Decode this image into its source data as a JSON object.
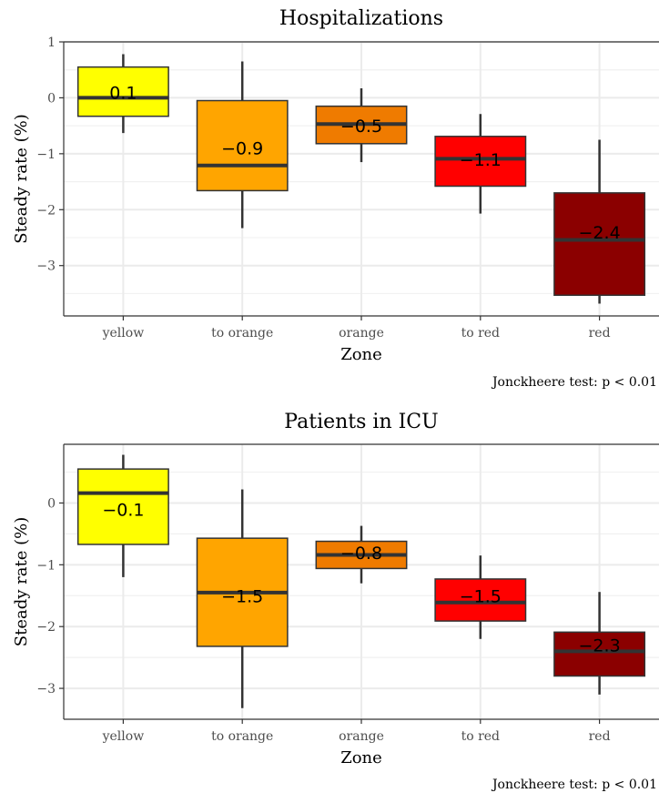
{
  "chart_data": [
    {
      "type": "box",
      "title": "Hospitalizations",
      "xlabel": "Zone",
      "ylabel": "Steady rate (%)",
      "caption": "Jonckheere test: p < 0.01",
      "ylim": [
        -3.9,
        1.0
      ],
      "yticks": [
        {
          "value": 1,
          "label": "1"
        },
        {
          "value": 0,
          "label": "0"
        },
        {
          "value": -1,
          "label": "−1"
        },
        {
          "value": -2,
          "label": "−2"
        },
        {
          "value": -3,
          "label": "−3"
        }
      ],
      "categories": [
        "yellow",
        "to orange",
        "orange",
        "to red",
        "red"
      ],
      "colors": [
        "#ffff00",
        "#ffa500",
        "#ef7b00",
        "#ff0000",
        "#8b0000"
      ],
      "boxes": [
        {
          "whisker_low": -0.63,
          "q1": -0.33,
          "median": 0.0,
          "q3": 0.55,
          "whisker_high": 0.78,
          "mean_label": "0.1"
        },
        {
          "whisker_low": -2.33,
          "q1": -1.66,
          "median": -1.21,
          "q3": -0.05,
          "whisker_high": 0.65,
          "mean_label": "−0.9"
        },
        {
          "whisker_low": -1.15,
          "q1": -0.82,
          "median": -0.47,
          "q3": -0.15,
          "whisker_high": 0.17,
          "mean_label": "−0.5"
        },
        {
          "whisker_low": -2.07,
          "q1": -1.58,
          "median": -1.09,
          "q3": -0.69,
          "whisker_high": -0.29,
          "mean_label": "−1.1"
        },
        {
          "whisker_low": -3.68,
          "q1": -3.53,
          "median": -2.54,
          "q3": -1.7,
          "whisker_high": -0.75,
          "mean_label": "−2.4"
        }
      ],
      "grid": true
    },
    {
      "type": "box",
      "title": "Patients in ICU",
      "xlabel": "Zone",
      "ylabel": "Steady rate (%)",
      "caption": "Jonckheere test: p < 0.01",
      "ylim": [
        -3.5,
        0.95
      ],
      "yticks": [
        {
          "value": 0,
          "label": "0"
        },
        {
          "value": -1,
          "label": "−1"
        },
        {
          "value": -2,
          "label": "−2"
        },
        {
          "value": -3,
          "label": "−3"
        }
      ],
      "categories": [
        "yellow",
        "to orange",
        "orange",
        "to red",
        "red"
      ],
      "colors": [
        "#ffff00",
        "#ffa500",
        "#ef7b00",
        "#ff0000",
        "#8b0000"
      ],
      "boxes": [
        {
          "whisker_low": -1.2,
          "q1": -0.67,
          "median": 0.16,
          "q3": 0.55,
          "whisker_high": 0.78,
          "mean_label": "−0.1"
        },
        {
          "whisker_low": -3.32,
          "q1": -2.32,
          "median": -1.45,
          "q3": -0.57,
          "whisker_high": 0.22,
          "mean_label": "−1.5"
        },
        {
          "whisker_low": -1.3,
          "q1": -1.06,
          "median": -0.84,
          "q3": -0.62,
          "whisker_high": -0.37,
          "mean_label": "−0.8"
        },
        {
          "whisker_low": -2.2,
          "q1": -1.91,
          "median": -1.61,
          "q3": -1.23,
          "whisker_high": -0.85,
          "mean_label": "−1.5"
        },
        {
          "whisker_low": -3.1,
          "q1": -2.8,
          "median": -2.4,
          "q3": -2.09,
          "whisker_high": -1.44,
          "mean_label": "−2.3"
        }
      ],
      "grid": true
    }
  ]
}
